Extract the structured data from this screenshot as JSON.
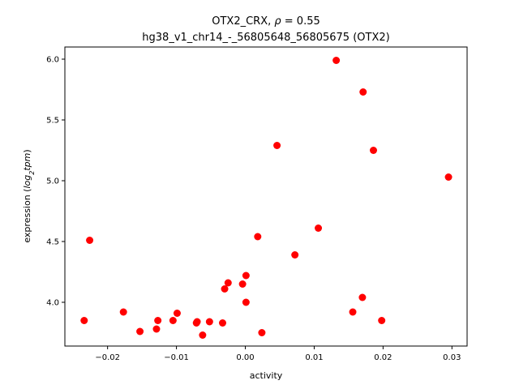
{
  "chart_data": {
    "type": "scatter",
    "title_line1_prefix": "OTX2_CRX, ",
    "title_rho_symbol": "ρ",
    "title_rho_value": " = 0.55",
    "title_line2": "hg38_v1_chr14_-_56805648_56805675 (OTX2)",
    "xlabel": "activity",
    "ylabel_prefix": "expression (",
    "ylabel_log": "log",
    "ylabel_sub": "2",
    "ylabel_tpm": "tpm",
    "ylabel_suffix": ")",
    "xlim": [
      -0.0262,
      0.0322
    ],
    "ylim": [
      3.64,
      6.1
    ],
    "x_ticks": [
      -0.02,
      -0.01,
      0.0,
      0.01,
      0.02,
      0.03
    ],
    "x_tick_labels": [
      "−0.02",
      "−0.01",
      "0.00",
      "0.01",
      "0.02",
      "0.03"
    ],
    "y_ticks": [
      4.0,
      4.5,
      5.0,
      5.5,
      6.0
    ],
    "y_tick_labels": [
      "4.0",
      "4.5",
      "5.0",
      "5.5",
      "6.0"
    ],
    "marker_color": "#ff0000",
    "points": [
      {
        "x": -0.0234,
        "y": 3.85
      },
      {
        "x": -0.0226,
        "y": 4.51
      },
      {
        "x": -0.0177,
        "y": 3.92
      },
      {
        "x": -0.0153,
        "y": 3.76
      },
      {
        "x": -0.0129,
        "y": 3.78
      },
      {
        "x": -0.0127,
        "y": 3.85
      },
      {
        "x": -0.0105,
        "y": 3.85
      },
      {
        "x": -0.0099,
        "y": 3.91
      },
      {
        "x": -0.0071,
        "y": 3.83
      },
      {
        "x": -0.007,
        "y": 3.84
      },
      {
        "x": -0.0062,
        "y": 3.73
      },
      {
        "x": -0.0052,
        "y": 3.84
      },
      {
        "x": -0.0033,
        "y": 3.83
      },
      {
        "x": -0.003,
        "y": 4.11
      },
      {
        "x": -0.0025,
        "y": 4.16
      },
      {
        "x": -0.0004,
        "y": 4.15
      },
      {
        "x": 0.0001,
        "y": 4.22
      },
      {
        "x": 0.0001,
        "y": 4.0
      },
      {
        "x": 0.0018,
        "y": 4.54
      },
      {
        "x": 0.0024,
        "y": 3.75
      },
      {
        "x": 0.0046,
        "y": 5.29
      },
      {
        "x": 0.0072,
        "y": 4.39
      },
      {
        "x": 0.0106,
        "y": 4.61
      },
      {
        "x": 0.0132,
        "y": 5.99
      },
      {
        "x": 0.0156,
        "y": 3.92
      },
      {
        "x": 0.017,
        "y": 4.04
      },
      {
        "x": 0.0171,
        "y": 5.73
      },
      {
        "x": 0.0186,
        "y": 5.25
      },
      {
        "x": 0.0198,
        "y": 3.85
      },
      {
        "x": 0.0295,
        "y": 5.03
      }
    ]
  }
}
